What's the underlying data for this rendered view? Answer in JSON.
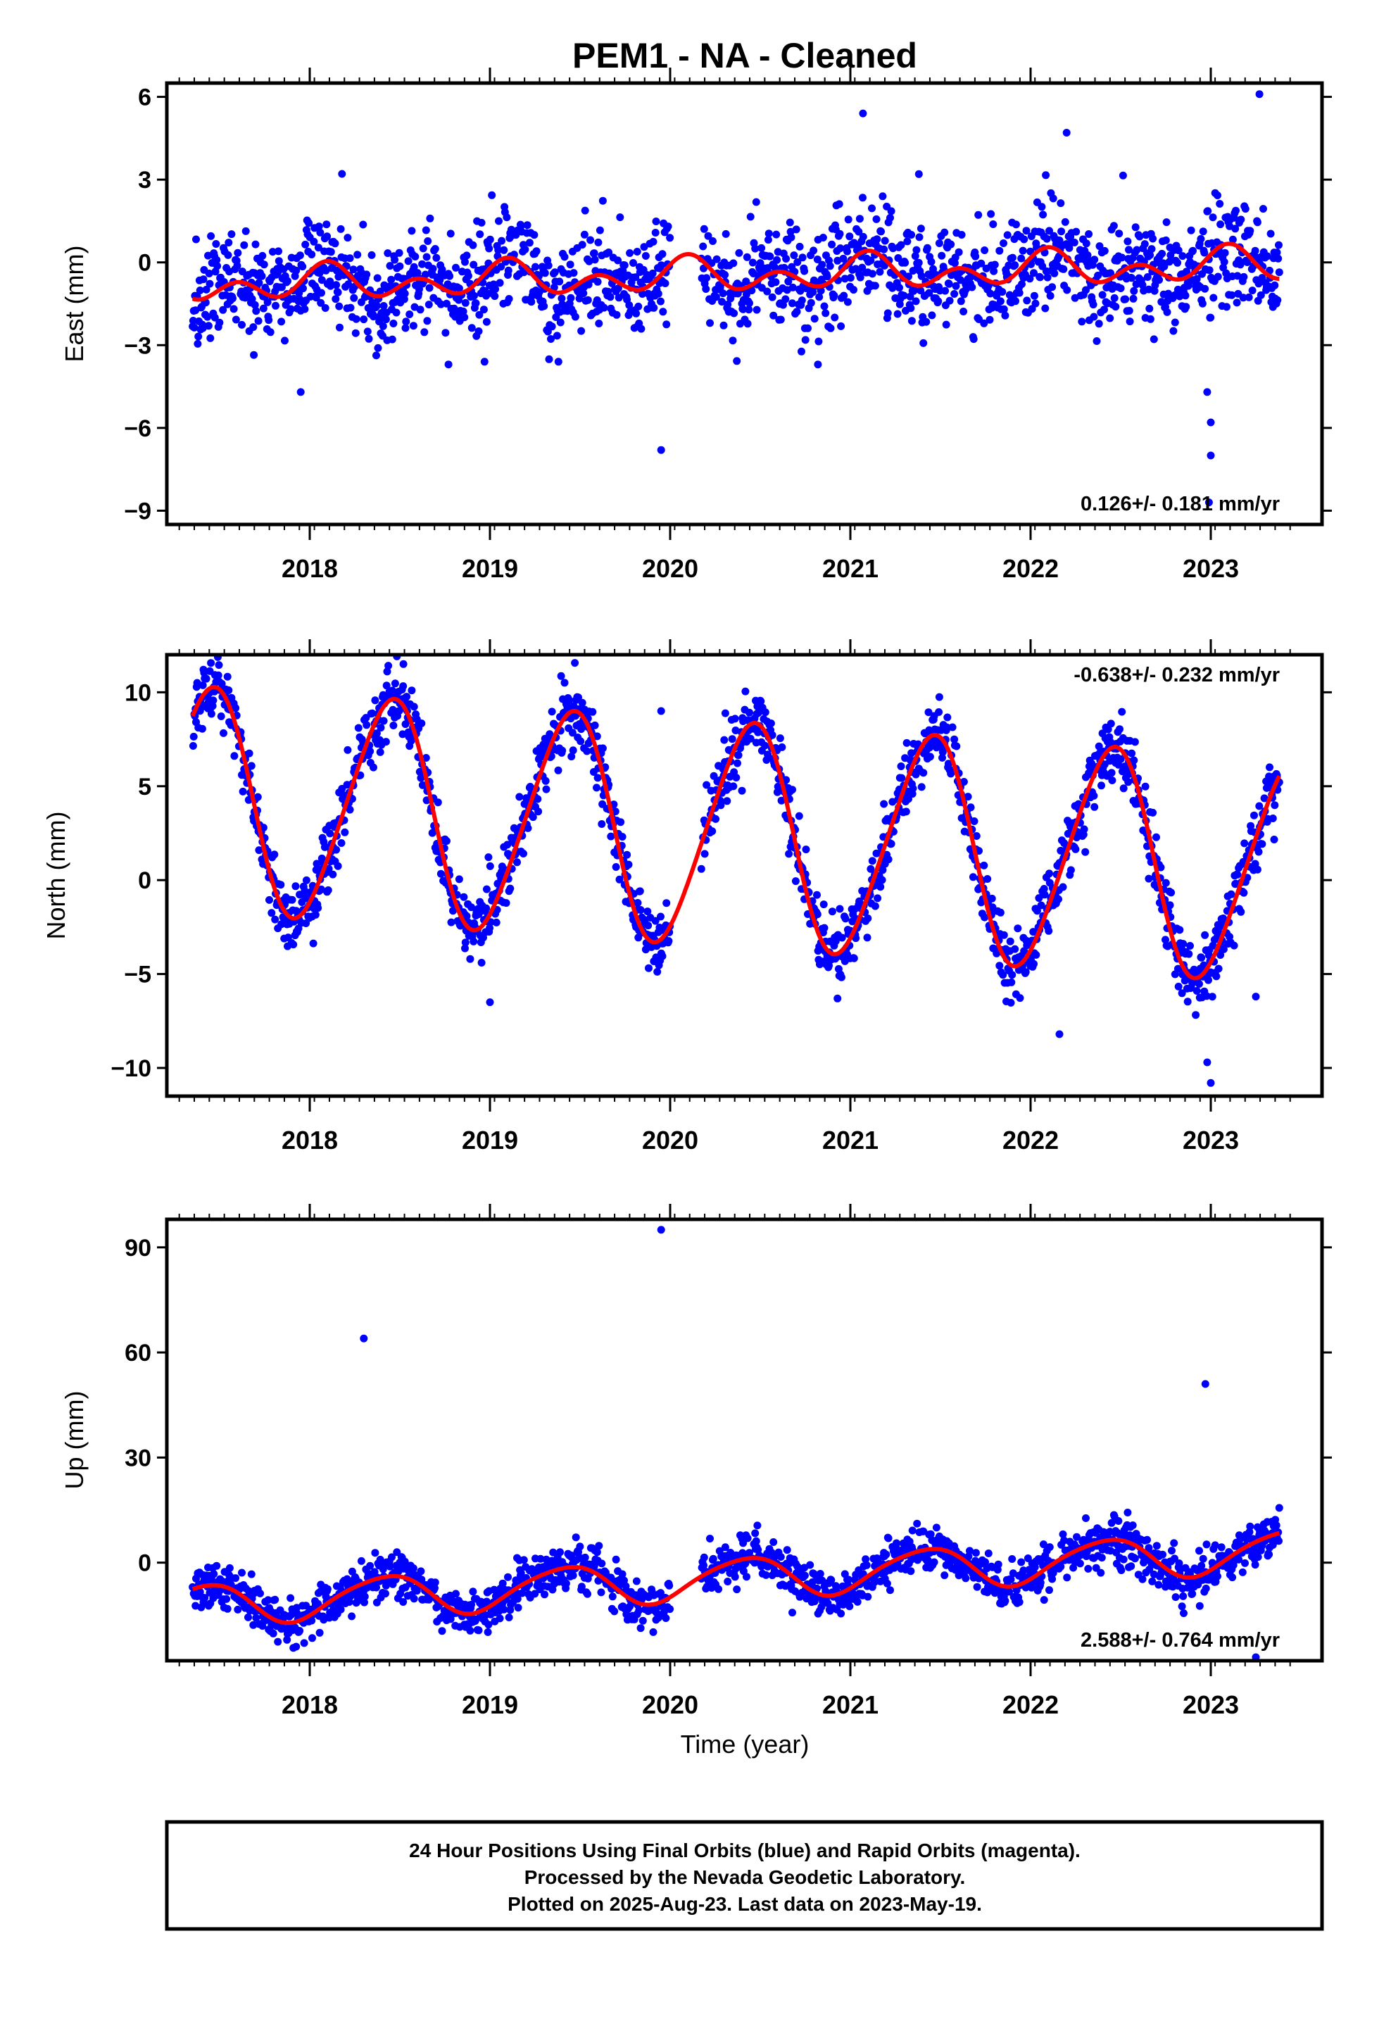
{
  "title": "PEM1  - NA - Cleaned",
  "colors": {
    "points": "#0000ff",
    "model": "#ff0000",
    "frame": "#000000",
    "background": "#ffffff"
  },
  "x_axis": {
    "label": "Time (year)",
    "range": [
      2017.25,
      2023.5
    ],
    "ticks": [
      2018,
      2019,
      2020,
      2021,
      2022,
      2023
    ],
    "tick_labels": [
      "2018",
      "2019",
      "2020",
      "2021",
      "2022",
      "2023"
    ],
    "minor_step": 0.0833
  },
  "chart_data": [
    {
      "type": "scatter",
      "panel": "east",
      "ylabel": "East (mm)",
      "ylim": [
        -9.5,
        6.5
      ],
      "yticks": [
        6,
        3,
        0,
        -3,
        -6,
        -9
      ],
      "ytick_labels": [
        "6",
        "3",
        "0",
        "−3",
        "−6",
        "−9"
      ],
      "velocity_text": "0.126+/- 0.181 mm/yr",
      "velocity_position": "bottom-right",
      "data_range": [
        2017.35,
        2023.38
      ],
      "gap": [
        2020.0,
        2020.17
      ],
      "model": {
        "trend": 0.126,
        "offset": -0.45,
        "annual_amp": 0.35,
        "annual_phase": 1.0,
        "semiannual_amp": 0.45,
        "semiannual_phase": 0.3
      },
      "residual_std": 0.9,
      "outliers": [
        {
          "x": 2017.95,
          "y": -4.7
        },
        {
          "x": 2018.77,
          "y": -3.7
        },
        {
          "x": 2018.97,
          "y": -3.6
        },
        {
          "x": 2019.38,
          "y": -3.6
        },
        {
          "x": 2019.95,
          "y": -6.8
        },
        {
          "x": 2020.82,
          "y": -3.7
        },
        {
          "x": 2021.07,
          "y": 5.4
        },
        {
          "x": 2021.38,
          "y": 3.2
        },
        {
          "x": 2022.2,
          "y": 4.7
        },
        {
          "x": 2022.98,
          "y": -4.7
        },
        {
          "x": 2023.0,
          "y": -5.8
        },
        {
          "x": 2023.0,
          "y": -7.0
        },
        {
          "x": 2022.99,
          "y": -8.7
        },
        {
          "x": 2023.27,
          "y": 6.1
        }
      ]
    },
    {
      "type": "scatter",
      "panel": "north",
      "ylabel": "North (mm)",
      "ylim": [
        -11.5,
        12
      ],
      "yticks": [
        10,
        5,
        0,
        -5,
        -10
      ],
      "ytick_labels": [
        "10",
        "5",
        "0",
        "−5",
        "−10"
      ],
      "velocity_text": "-0.638+/- 0.232 mm/yr",
      "velocity_position": "top-right",
      "data_range": [
        2017.35,
        2023.38
      ],
      "gap": [
        2020.0,
        2020.17
      ],
      "model": {
        "trend": -0.638,
        "offset": 2.3,
        "annual_amp": 5.9,
        "annual_phase": -1.2,
        "semiannual_amp": 0.6,
        "semiannual_phase": 0.8
      },
      "residual_std": 0.9,
      "outliers": [
        {
          "x": 2018.52,
          "y": 11.5
        },
        {
          "x": 2019.0,
          "y": -6.5
        },
        {
          "x": 2019.95,
          "y": 9.0
        },
        {
          "x": 2022.16,
          "y": -8.2
        },
        {
          "x": 2022.98,
          "y": -9.7
        },
        {
          "x": 2023.0,
          "y": -10.8
        },
        {
          "x": 2023.25,
          "y": -6.2
        }
      ]
    },
    {
      "type": "scatter",
      "panel": "up",
      "ylabel": "Up (mm)",
      "ylim": [
        -28,
        98
      ],
      "yticks": [
        90,
        60,
        30,
        0
      ],
      "ytick_labels": [
        "90",
        "60",
        "30",
        "0"
      ],
      "velocity_text": "2.588+/- 0.764 mm/yr",
      "velocity_position": "bottom-right",
      "data_range": [
        2017.35,
        2023.38
      ],
      "gap": [
        2020.0,
        2020.17
      ],
      "model": {
        "trend": 2.588,
        "offset": -4.0,
        "annual_amp": 5.8,
        "annual_phase": -1.0,
        "semiannual_amp": 0.8,
        "semiannual_phase": 0.4
      },
      "residual_std": 3.2,
      "outliers": [
        {
          "x": 2018.3,
          "y": 64
        },
        {
          "x": 2019.95,
          "y": 95
        },
        {
          "x": 2022.97,
          "y": 51
        },
        {
          "x": 2023.25,
          "y": -27
        }
      ]
    }
  ],
  "footer": {
    "line1": "24 Hour Positions Using Final Orbits (blue) and Rapid Orbits (magenta).",
    "line2": "Processed by the Nevada Geodetic Laboratory.",
    "line3": "Plotted on 2025-Aug-23. Last data on 2023-May-19."
  }
}
